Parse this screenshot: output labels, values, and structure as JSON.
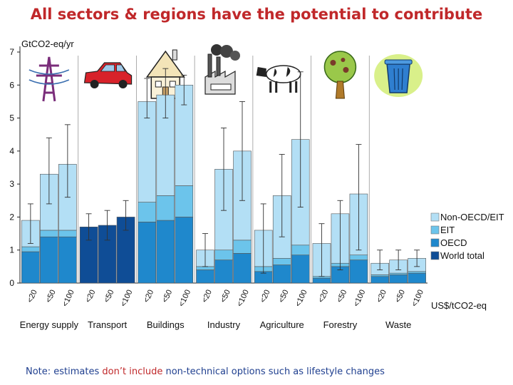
{
  "title": "All sectors & regions have the potential to contribute",
  "note": {
    "part1": "Note: estimates ",
    "part2": "don’t include ",
    "part3": "non-technical options such as lifestyle changes"
  },
  "chart_data": {
    "type": "bar",
    "stacked": true,
    "ylabel": "GtCO2-eq/yr",
    "ylim": [
      0,
      7
    ],
    "yticks": [
      0,
      1,
      2,
      3,
      4,
      5,
      6,
      7
    ],
    "cost_unit_label": "US$/tCO2-eq",
    "cost_levels": [
      "<20",
      "<50",
      "<100"
    ],
    "sectors": [
      "Energy supply",
      "Transport",
      "Buildings",
      "Industry",
      "Agriculture",
      "Forestry",
      "Waste"
    ],
    "sector_icons": [
      "pylon-icon",
      "car-icon",
      "house-icon",
      "factory-icon",
      "cow-icon",
      "tree-icon",
      "trash-can-icon"
    ],
    "legend": [
      {
        "name": "Non-OECD/EIT",
        "color": "#b3dff5"
      },
      {
        "name": "EIT",
        "color": "#6cc4eb"
      },
      {
        "name": "OECD",
        "color": "#1f88cc"
      },
      {
        "name": "World total",
        "color": "#0f4d96"
      }
    ],
    "bars": [
      {
        "sector": "Energy supply",
        "cost": "<20",
        "OECD": 0.95,
        "EIT": 0.15,
        "Non-OECD/EIT": 0.8,
        "total": 1.9,
        "err": [
          1.2,
          2.4
        ]
      },
      {
        "sector": "Energy supply",
        "cost": "<50",
        "OECD": 1.4,
        "EIT": 0.2,
        "Non-OECD/EIT": 1.7,
        "total": 3.3,
        "err": [
          2.4,
          4.4
        ]
      },
      {
        "sector": "Energy supply",
        "cost": "<100",
        "OECD": 1.4,
        "EIT": 0.2,
        "Non-OECD/EIT": 2.0,
        "total": 3.6,
        "err": [
          2.6,
          4.8
        ]
      },
      {
        "sector": "Transport",
        "cost": "<20",
        "World total": 1.7,
        "total": 1.7,
        "err": [
          1.3,
          2.1
        ]
      },
      {
        "sector": "Transport",
        "cost": "<50",
        "World total": 1.75,
        "total": 1.75,
        "err": [
          1.3,
          2.2
        ]
      },
      {
        "sector": "Transport",
        "cost": "<100",
        "World total": 2.0,
        "total": 2.0,
        "err": [
          1.6,
          2.5
        ]
      },
      {
        "sector": "Buildings",
        "cost": "<20",
        "OECD": 1.85,
        "EIT": 0.6,
        "Non-OECD/EIT": 3.05,
        "total": 5.5,
        "err": [
          5.0,
          6.2
        ]
      },
      {
        "sector": "Buildings",
        "cost": "<50",
        "OECD": 1.9,
        "EIT": 0.75,
        "Non-OECD/EIT": 3.05,
        "total": 5.7,
        "err": [
          5.0,
          6.5
        ]
      },
      {
        "sector": "Buildings",
        "cost": "<100",
        "OECD": 2.0,
        "EIT": 0.95,
        "Non-OECD/EIT": 3.05,
        "total": 6.0,
        "err": [
          5.4,
          6.3
        ]
      },
      {
        "sector": "Industry",
        "cost": "<20",
        "OECD": 0.4,
        "EIT": 0.1,
        "Non-OECD/EIT": 0.5,
        "total": 1.0,
        "err": [
          0.5,
          1.5
        ]
      },
      {
        "sector": "Industry",
        "cost": "<50",
        "OECD": 0.7,
        "EIT": 0.3,
        "Non-OECD/EIT": 2.45,
        "total": 3.45,
        "err": [
          2.2,
          4.7
        ]
      },
      {
        "sector": "Industry",
        "cost": "<100",
        "OECD": 0.9,
        "EIT": 0.4,
        "Non-OECD/EIT": 2.7,
        "total": 4.0,
        "err": [
          2.5,
          5.5
        ]
      },
      {
        "sector": "Agriculture",
        "cost": "<20",
        "OECD": 0.35,
        "EIT": 0.15,
        "Non-OECD/EIT": 1.1,
        "total": 1.6,
        "err": [
          0.3,
          2.4
        ]
      },
      {
        "sector": "Agriculture",
        "cost": "<50",
        "OECD": 0.55,
        "EIT": 0.2,
        "Non-OECD/EIT": 1.9,
        "total": 2.65,
        "err": [
          1.4,
          3.9
        ]
      },
      {
        "sector": "Agriculture",
        "cost": "<100",
        "OECD": 0.85,
        "EIT": 0.3,
        "Non-OECD/EIT": 3.2,
        "total": 4.35,
        "err": [
          2.3,
          6.4
        ]
      },
      {
        "sector": "Forestry",
        "cost": "<20",
        "OECD": 0.15,
        "EIT": 0.05,
        "Non-OECD/EIT": 1.0,
        "total": 1.2,
        "err": [
          0.2,
          1.8
        ]
      },
      {
        "sector": "Forestry",
        "cost": "<50",
        "OECD": 0.5,
        "EIT": 0.1,
        "Non-OECD/EIT": 1.5,
        "total": 2.1,
        "err": [
          0.4,
          2.5
        ]
      },
      {
        "sector": "Forestry",
        "cost": "<100",
        "OECD": 0.7,
        "EIT": 0.15,
        "Non-OECD/EIT": 1.85,
        "total": 2.7,
        "err": [
          1.0,
          4.2
        ]
      },
      {
        "sector": "Waste",
        "cost": "<20",
        "OECD": 0.2,
        "EIT": 0.05,
        "Non-OECD/EIT": 0.35,
        "total": 0.6,
        "err": [
          0.4,
          1.0
        ]
      },
      {
        "sector": "Waste",
        "cost": "<50",
        "OECD": 0.25,
        "EIT": 0.05,
        "Non-OECD/EIT": 0.4,
        "total": 0.7,
        "err": [
          0.4,
          1.0
        ]
      },
      {
        "sector": "Waste",
        "cost": "<100",
        "OECD": 0.3,
        "EIT": 0.05,
        "Non-OECD/EIT": 0.4,
        "total": 0.75,
        "err": [
          0.5,
          1.0
        ]
      }
    ]
  }
}
